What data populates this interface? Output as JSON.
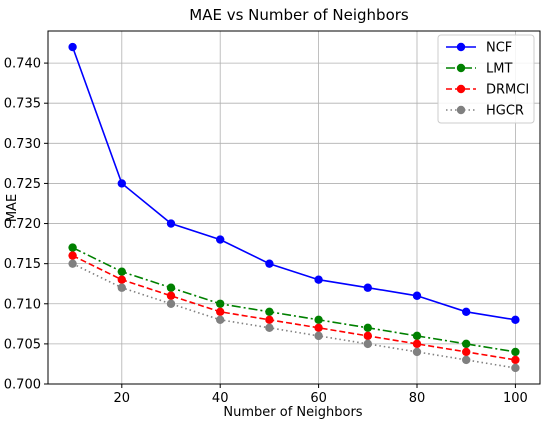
{
  "chart_data": {
    "type": "line",
    "title": "MAE vs Number of Neighbors",
    "xlabel": "Number of Neighbors",
    "ylabel": "MAE",
    "x": [
      10,
      20,
      30,
      40,
      50,
      60,
      70,
      80,
      90,
      100
    ],
    "xlim": [
      5,
      105
    ],
    "ylim": [
      0.7,
      0.744
    ],
    "xticks": [
      20,
      40,
      60,
      80,
      100
    ],
    "xtick_labels": [
      "20",
      "40",
      "60",
      "80",
      "100"
    ],
    "yticks": [
      0.7,
      0.705,
      0.71,
      0.715,
      0.72,
      0.725,
      0.73,
      0.735,
      0.74
    ],
    "ytick_labels": [
      "0.700",
      "0.705",
      "0.710",
      "0.715",
      "0.720",
      "0.725",
      "0.730",
      "0.735",
      "0.740"
    ],
    "grid": true,
    "legend_position": "top-right",
    "series": [
      {
        "name": "NCF",
        "color": "#0000ff",
        "dash": "solid",
        "marker": "circle",
        "values": [
          0.742,
          0.725,
          0.72,
          0.718,
          0.715,
          0.713,
          0.712,
          0.711,
          0.709,
          0.708
        ]
      },
      {
        "name": "LMT",
        "color": "#008000",
        "dash": "dashdot",
        "marker": "circle",
        "values": [
          0.717,
          0.714,
          0.712,
          0.71,
          0.709,
          0.708,
          0.707,
          0.706,
          0.705,
          0.704
        ]
      },
      {
        "name": "DRMCI",
        "color": "#ff0000",
        "dash": "dashed",
        "marker": "circle",
        "values": [
          0.716,
          0.713,
          0.711,
          0.709,
          0.708,
          0.707,
          0.706,
          0.705,
          0.704,
          0.703
        ]
      },
      {
        "name": "HGCR",
        "color": "#808080",
        "dash": "dotted",
        "marker": "circle",
        "values": [
          0.715,
          0.712,
          0.71,
          0.708,
          0.707,
          0.706,
          0.705,
          0.704,
          0.703,
          0.702
        ]
      }
    ]
  }
}
